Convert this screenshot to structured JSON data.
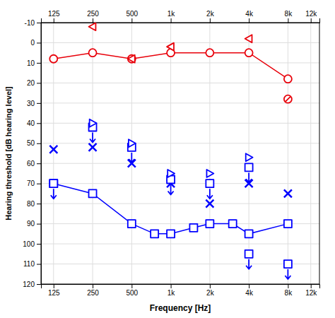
{
  "chart_data": {
    "type": "line",
    "xlabel": "Frequency [Hz]",
    "ylabel": "Hearing threshold [dB hearing level]",
    "log": "x",
    "xlim": [
      100,
      14000
    ],
    "ylim": [
      120,
      -10
    ],
    "xticks": [
      125,
      250,
      500,
      {
        "value": 1000,
        "label": "1k"
      },
      {
        "value": 2000,
        "label": "2k"
      },
      {
        "value": 4000,
        "label": "4k"
      },
      {
        "value": 8000,
        "label": "8k"
      },
      {
        "value": 12000,
        "label": "12k"
      }
    ],
    "yticks": [
      -10,
      0,
      10,
      20,
      30,
      40,
      50,
      60,
      70,
      80,
      90,
      100,
      110,
      120
    ],
    "grid": true,
    "series": [
      {
        "type": "line",
        "color": "#e8000a",
        "marker": "circle",
        "line_style": "solid",
        "x": [
          125,
          250,
          500,
          1000,
          2000,
          4000,
          8000
        ],
        "values": [
          8,
          5,
          8,
          5,
          5,
          5,
          18
        ]
      },
      {
        "type": "scatter",
        "color": "#e8000a",
        "marker": "circle-slash",
        "x": [
          8000
        ],
        "values": [
          28
        ]
      },
      {
        "type": "scatter",
        "color": "#e8000a",
        "marker": "triangle-left",
        "x": [
          250,
          500,
          1000,
          4000
        ],
        "values": [
          -8,
          8,
          2,
          -2
        ]
      },
      {
        "type": "line",
        "color": "#0000ff",
        "marker": "square",
        "line_style": "solid",
        "x": [
          125,
          250,
          500,
          750,
          1000,
          1500,
          2000,
          3000,
          4000,
          8000
        ],
        "values": [
          70,
          75,
          90,
          95,
          95,
          92,
          90,
          90,
          95,
          90
        ]
      },
      {
        "type": "scatter",
        "color": "#0000ff",
        "marker": "square-arrow-down",
        "x": [
          125,
          4000,
          8000
        ],
        "values": [
          70,
          105,
          110
        ]
      },
      {
        "type": "scatter",
        "color": "#0000ff",
        "marker": "x",
        "x": [
          125,
          250,
          500,
          1000,
          2000,
          4000,
          8000
        ],
        "values": [
          53,
          52,
          60,
          70,
          80,
          70,
          75
        ]
      },
      {
        "type": "scatter",
        "color": "#0000ff",
        "marker": "square-arrow-down",
        "x": [
          250,
          500,
          1000,
          2000,
          4000
        ],
        "values": [
          42,
          52,
          68,
          70,
          62
        ]
      },
      {
        "type": "scatter",
        "color": "#0000ff",
        "marker": "triangle-right",
        "x": [
          250,
          500,
          1000,
          2000,
          4000
        ],
        "values": [
          40,
          50,
          65,
          65,
          57
        ]
      }
    ]
  }
}
